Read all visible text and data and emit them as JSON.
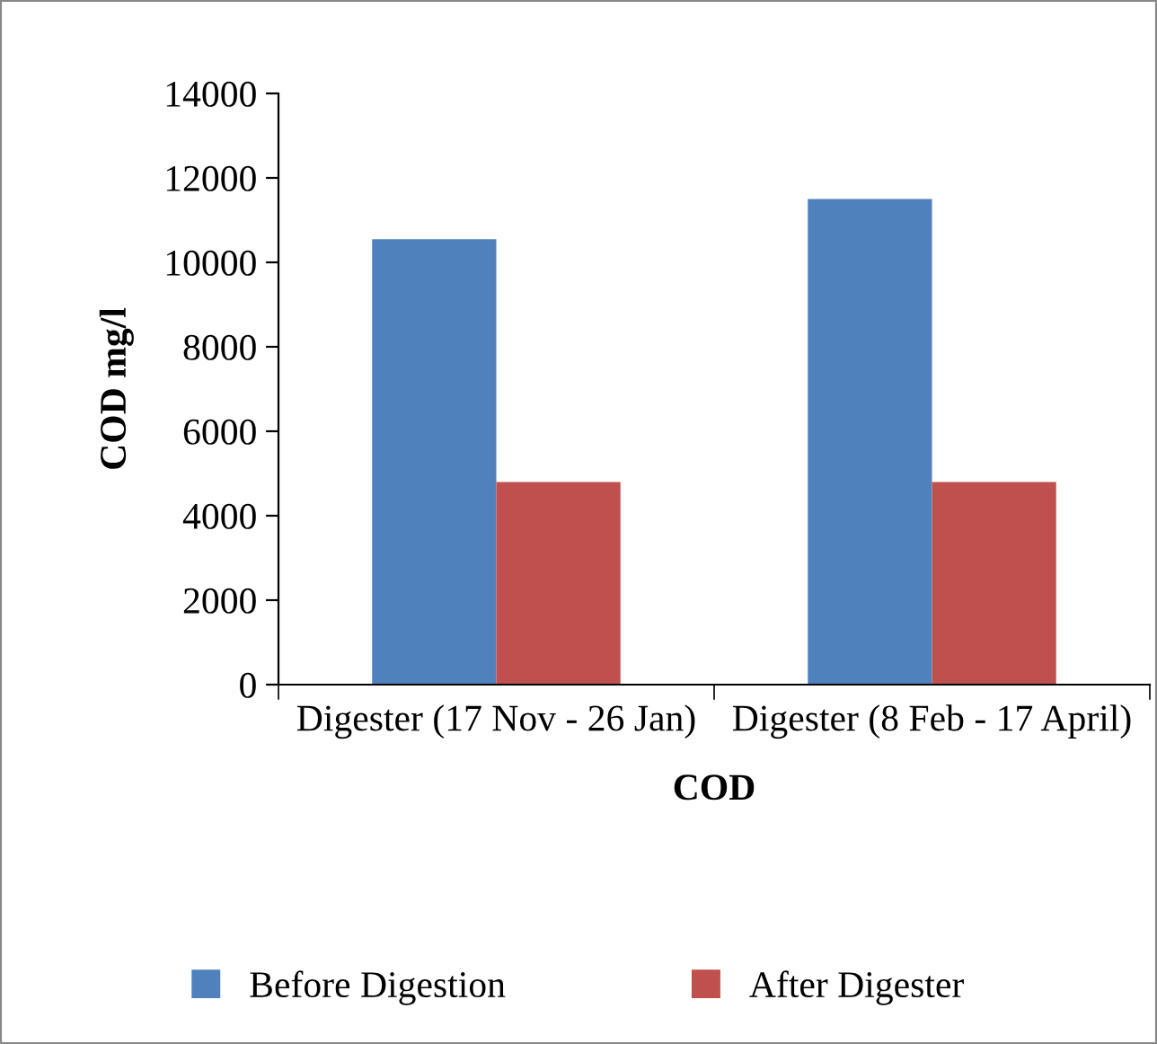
{
  "chart_data": {
    "type": "bar",
    "xlabel": "COD",
    "ylabel": "COD mg/l",
    "categories": [
      "Digester (17 Nov - 26 Jan)",
      "Digester (8 Feb - 17 April)"
    ],
    "series": [
      {
        "name": "Before Digestion",
        "color": "#4f81bd",
        "values": [
          10550,
          11500
        ]
      },
      {
        "name": "After Digester",
        "color": "#c0504d",
        "values": [
          4800,
          4800
        ]
      }
    ],
    "ylim": [
      0,
      14000
    ],
    "yticks": [
      0,
      2000,
      4000,
      6000,
      8000,
      10000,
      12000,
      14000
    ],
    "grid": false,
    "legend": "bottom"
  }
}
